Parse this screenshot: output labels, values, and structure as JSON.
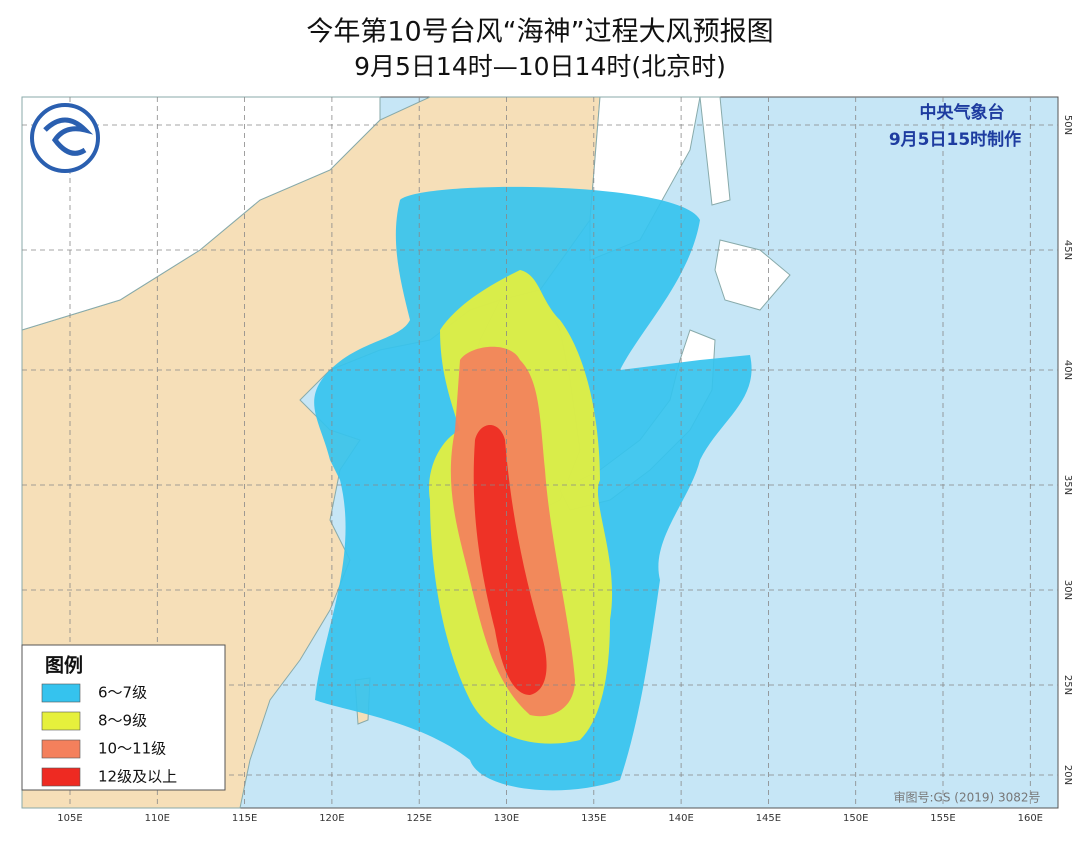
{
  "title": "今年第10号台风“海神”过程大风预报图",
  "subtitle": "9月5日14时—10日14时(北京时)",
  "agency": "中央气象台",
  "issued": "9月5日15时制作",
  "legend": {
    "title": "图例",
    "items": [
      {
        "label": "6～7级",
        "color": "#35c3ee"
      },
      {
        "label": "8～9级",
        "color": "#e6f03c"
      },
      {
        "label": "10～11级",
        "color": "#f4805c"
      },
      {
        "label": "12级及以上",
        "color": "#ee2a22"
      }
    ]
  },
  "longitudes": [
    "105E",
    "110E",
    "115E",
    "120E",
    "125E",
    "130E",
    "135E",
    "140E",
    "145E",
    "150E",
    "155E",
    "160E"
  ],
  "latitudes": [
    "50N",
    "45N",
    "40N",
    "35N",
    "30N",
    "25N",
    "20N"
  ],
  "map_number": "审图号:GS (2019) 3082号"
}
